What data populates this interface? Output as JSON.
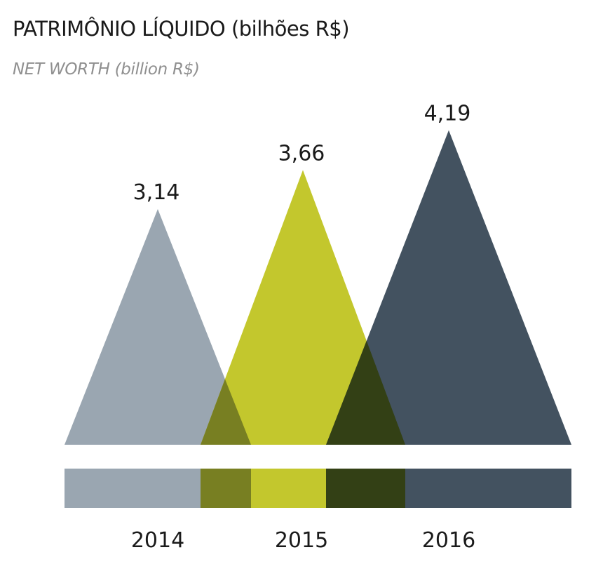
{
  "title": "PATRIMÔNIO LÍQUIDO (bilhões R$)",
  "subtitle": "NET WORTH (billion R$)",
  "chart_data": {
    "type": "area",
    "categories": [
      "2014",
      "2015",
      "2016"
    ],
    "values": [
      3.14,
      3.66,
      4.19
    ],
    "value_labels": [
      "3,14",
      "3,66",
      "4,19"
    ],
    "colors": [
      "#9aa6b1",
      "#c3c72d",
      "#435260"
    ],
    "overlap_colors": [
      "#787f22",
      "#334015"
    ],
    "legend": "bottom"
  }
}
